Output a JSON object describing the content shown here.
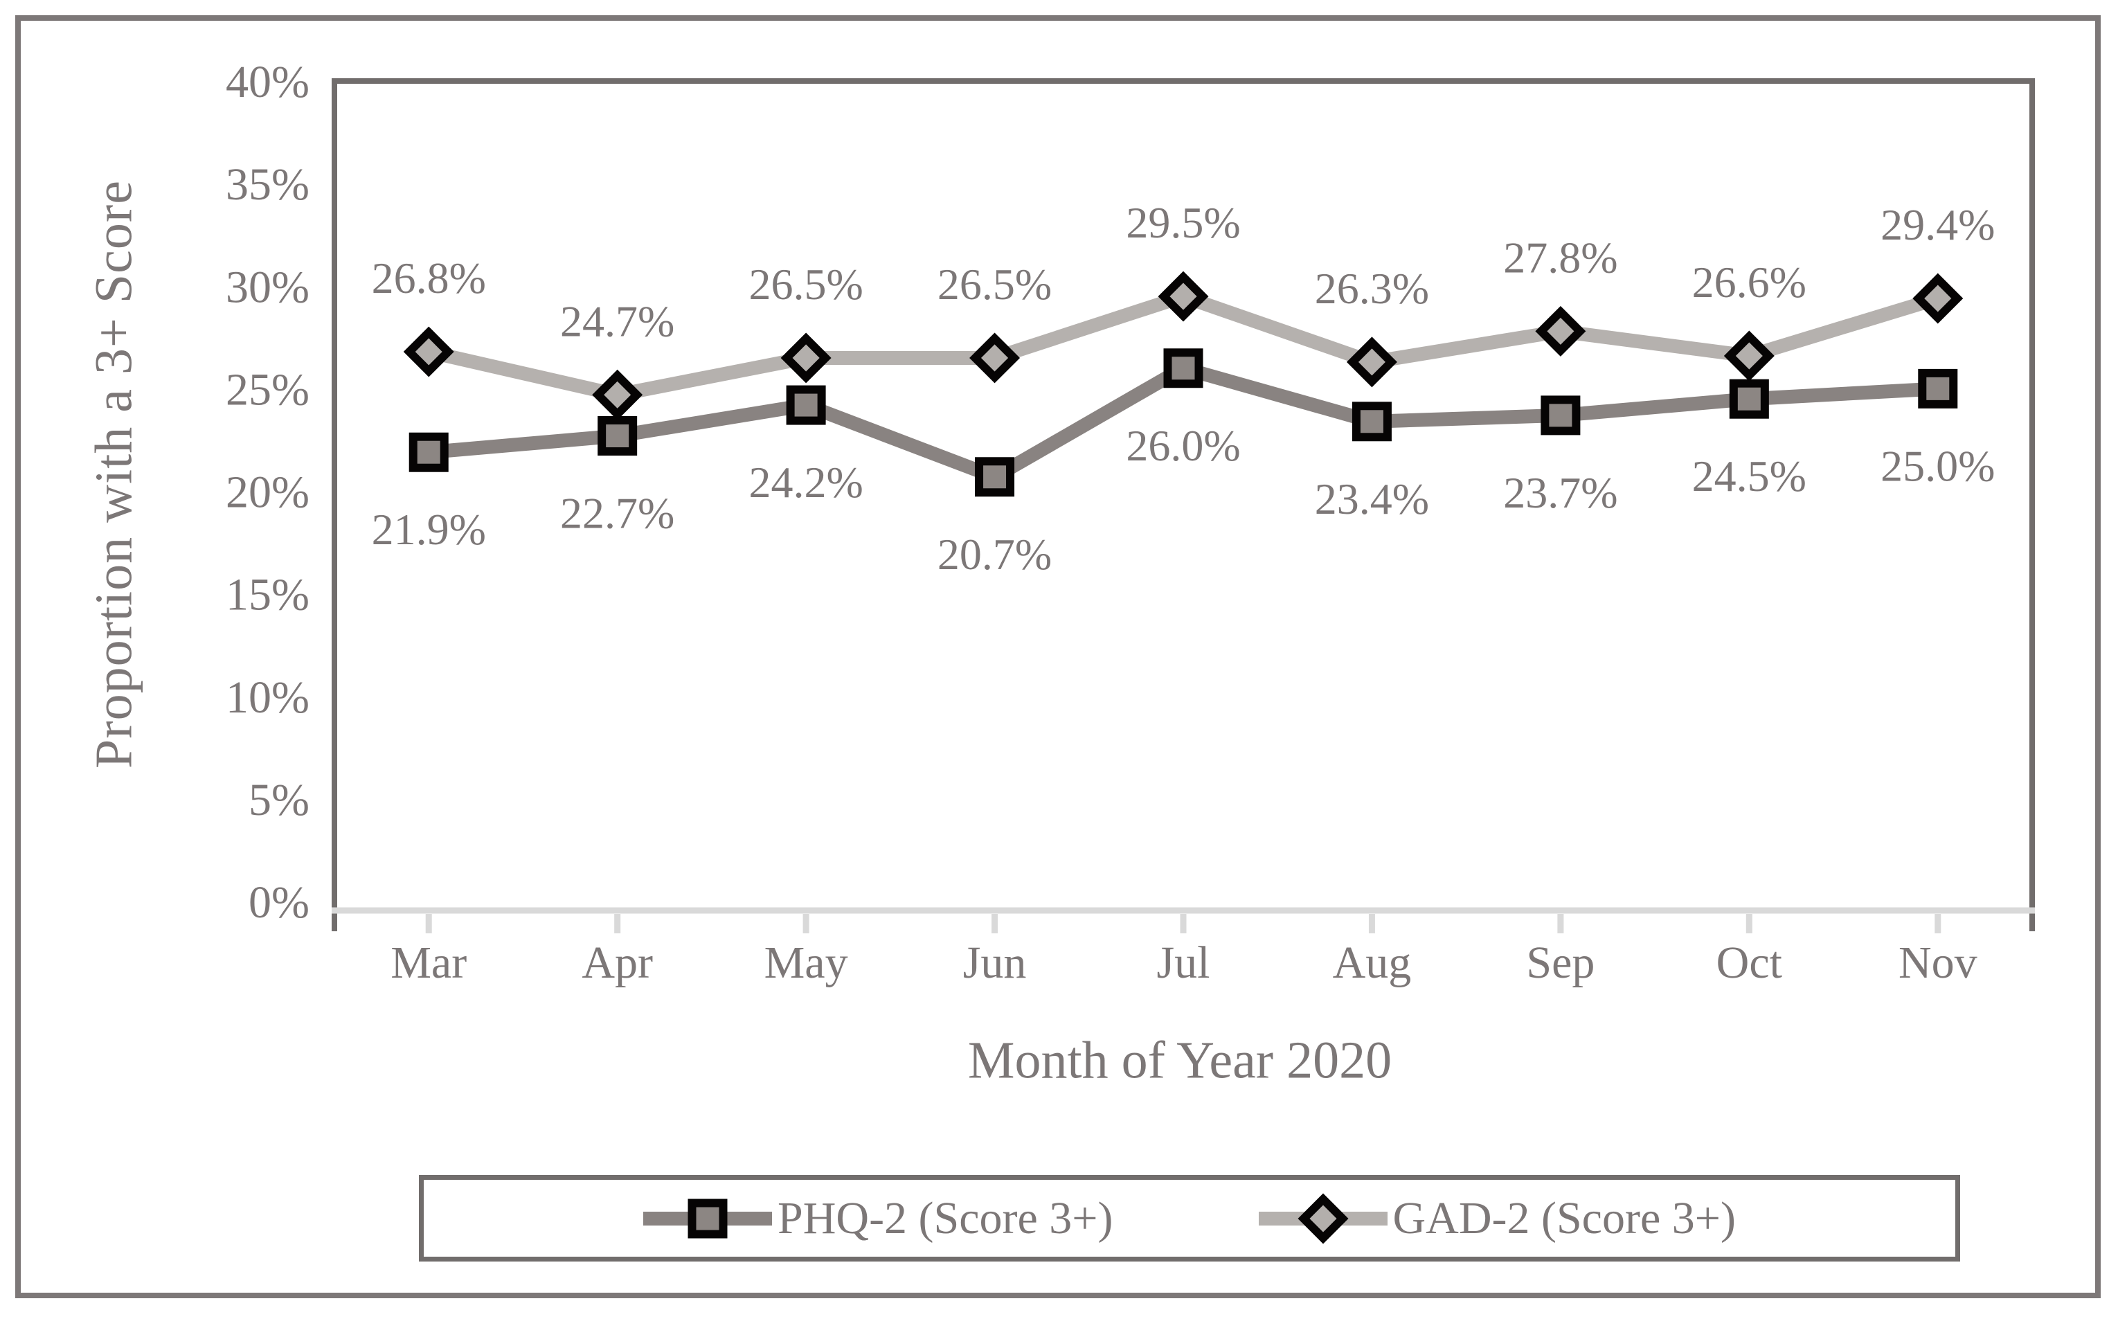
{
  "figure": {
    "background": "#ffffff",
    "border_color": "#7d7878"
  },
  "chart_data": {
    "type": "line",
    "title": "",
    "categories": [
      "Mar",
      "Apr",
      "May",
      "Jun",
      "Jul",
      "Aug",
      "Sep",
      "Oct",
      "Nov"
    ],
    "series": [
      {
        "name": "PHQ-2 (Score 3+)",
        "values": [
          21.9,
          22.7,
          24.2,
          20.7,
          26.0,
          23.4,
          23.7,
          24.5,
          25.0
        ],
        "labels": [
          "21.9%",
          "22.7%",
          "24.2%",
          "20.7%",
          "26.0%",
          "23.4%",
          "23.7%",
          "24.5%",
          "25.0%"
        ],
        "line_color": "#898381",
        "marker": "square",
        "marker_fill": "#8c8683",
        "marker_stroke": "#060404",
        "label_position": "below"
      },
      {
        "name": "GAD-2 (Score 3+)",
        "values": [
          26.8,
          24.7,
          26.5,
          26.5,
          29.5,
          26.3,
          27.8,
          26.6,
          29.4
        ],
        "labels": [
          "26.8%",
          "24.7%",
          "26.5%",
          "26.5%",
          "29.5%",
          "26.3%",
          "27.8%",
          "26.6%",
          "29.4%"
        ],
        "line_color": "#b5b1ae",
        "marker": "diamond",
        "marker_fill": "#b3afac",
        "marker_stroke": "#060404",
        "label_position": "above"
      }
    ],
    "xlabel": "Month of Year 2020",
    "ylabel": "Proportion with a 3+ Score",
    "ylim": [
      0,
      40
    ],
    "y_tick_values": [
      0,
      5,
      10,
      15,
      20,
      25,
      30,
      35,
      40
    ],
    "y_tick_labels": [
      "0%",
      "5%",
      "10%",
      "15%",
      "20%",
      "25%",
      "30%",
      "35%",
      "40%"
    ],
    "grid": false,
    "legend_position": "bottom",
    "axis_color": "#d9d9d9",
    "plot_border_color": "#716d6c",
    "text_color": "#7c7777"
  },
  "legend": {
    "items": [
      {
        "label": "PHQ-2 (Score 3+)"
      },
      {
        "label": "GAD-2 (Score 3+)"
      }
    ]
  }
}
